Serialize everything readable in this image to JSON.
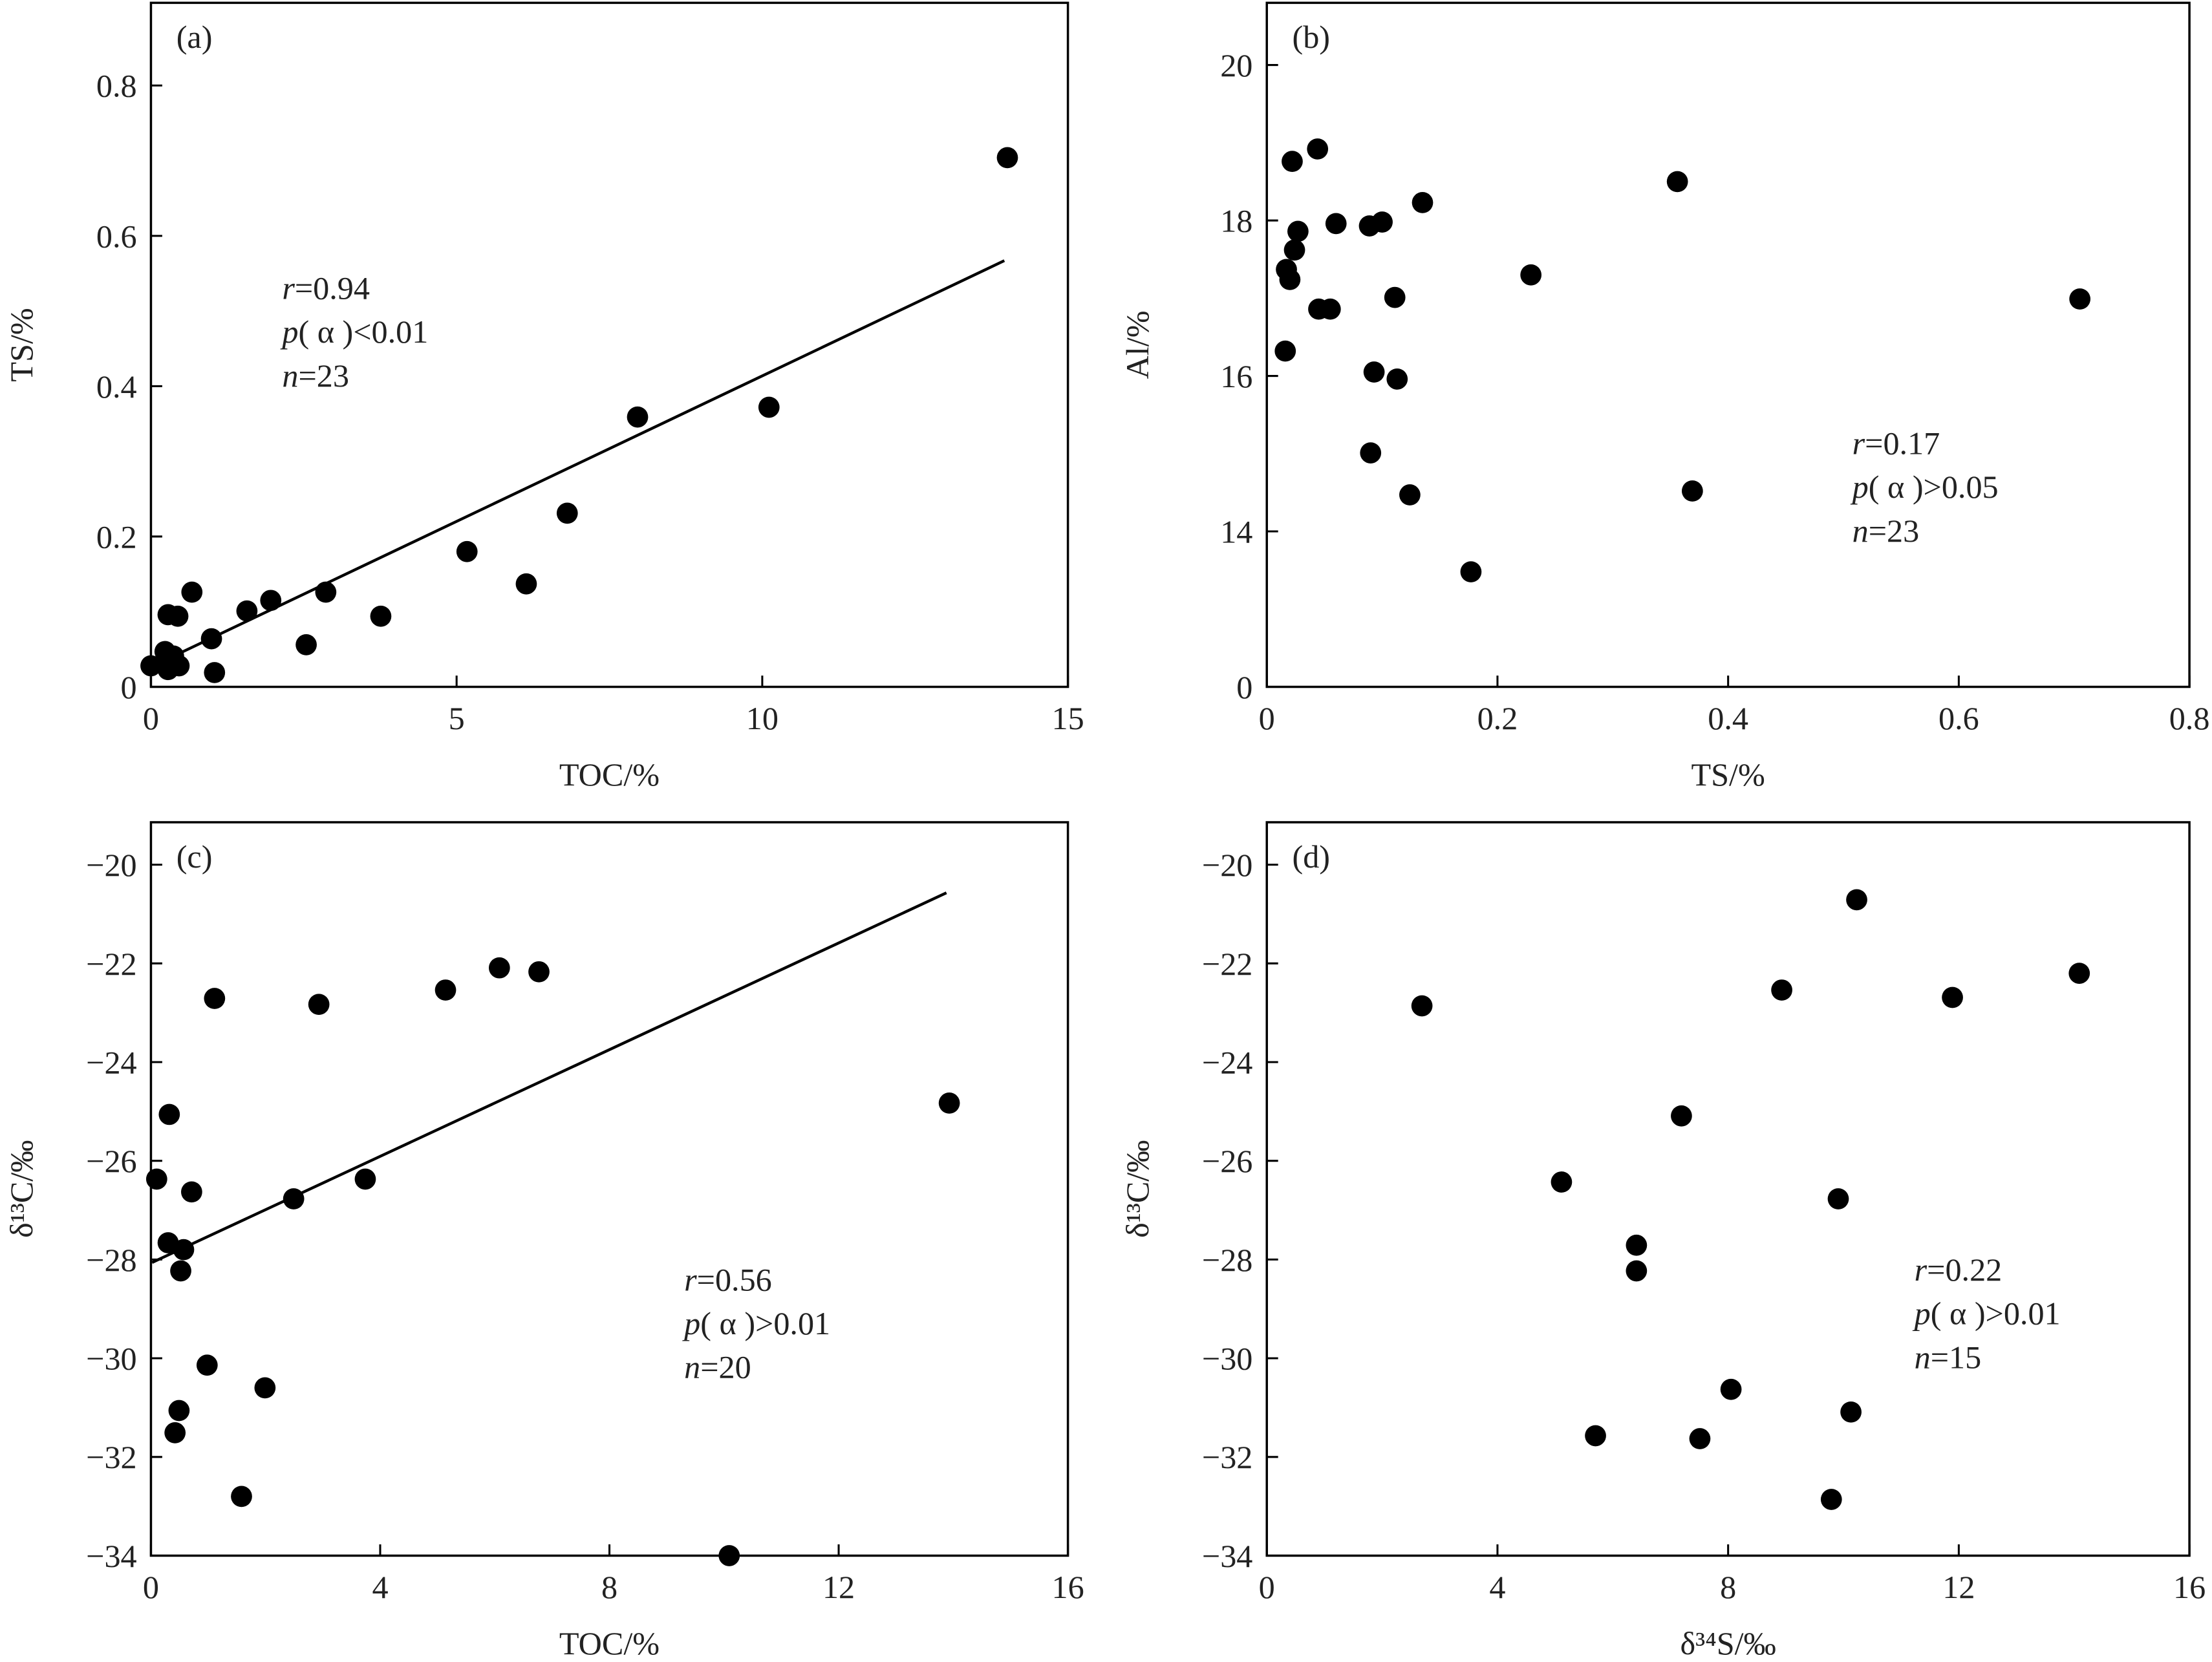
{
  "chart_data": [
    {
      "type": "scatter",
      "label": "(a)",
      "xlabel": "TOC/%",
      "ylabel": "TS/%",
      "color": "#000000",
      "x": [
        0,
        0.23,
        0.28,
        0.28,
        0.37,
        0.44,
        0.46,
        0.67,
        0.99,
        1.04,
        1.57,
        1.96,
        2.54,
        2.86,
        3.76,
        5.17,
        6.14,
        6.81,
        7.96,
        10.11,
        14.01,
        0.3,
        0.4
      ],
      "y": [
        0.028,
        0.047,
        0.096,
        0.023,
        0.041,
        0.094,
        0.028,
        0.126,
        0.064,
        0.019,
        0.101,
        0.115,
        0.056,
        0.126,
        0.094,
        0.18,
        0.137,
        0.231,
        0.359,
        0.372,
        0.704,
        0.035,
        0.032
      ],
      "xlim": [
        0,
        15
      ],
      "ylim": [
        0,
        0.91
      ],
      "xticks": [
        0,
        5,
        10,
        15
      ],
      "yticks": [
        0,
        {
          "value": 0.2,
          "label": "0.2"
        },
        {
          "value": 0.4,
          "label": "0.4"
        },
        {
          "value": 0.6,
          "label": "0.6"
        },
        {
          "value": 0.8,
          "label": "0.8"
        }
      ],
      "trendline": {
        "x": [
          0.14,
          13.96
        ],
        "y": [
          0.032,
          0.567
        ]
      },
      "annotations": [
        {
          "italic": "r",
          "text": "=0.94"
        },
        {
          "italic": "p",
          "text": "( α )<0.01"
        },
        {
          "italic": "n",
          "text": "=23"
        }
      ]
    },
    {
      "type": "scatter",
      "label": "(b)",
      "xlabel": "TS/%",
      "ylabel": "Al/%",
      "color": "#000000",
      "x": [
        0.022,
        0.044,
        0.356,
        0.135,
        0.027,
        0.06,
        0.089,
        0.1,
        0.024,
        0.017,
        0.02,
        0.229,
        0.045,
        0.055,
        0.111,
        0.705,
        0.016,
        0.093,
        0.113,
        0.09,
        0.124,
        0.369,
        0.177
      ],
      "y": [
        18.76,
        18.92,
        18.5,
        18.23,
        17.86,
        17.96,
        17.93,
        17.98,
        17.62,
        17.37,
        17.24,
        17.3,
        16.86,
        16.86,
        17.01,
        16.99,
        16.32,
        16.05,
        15.96,
        15.01,
        14.47,
        14.52,
        13.48
      ],
      "xlim": [
        0,
        0.8
      ],
      "ylim": [
        12,
        20.8
      ],
      "xticks": [
        0,
        {
          "value": 0.2,
          "label": "0.2"
        },
        {
          "value": 0.4,
          "label": "0.4"
        },
        {
          "value": 0.6,
          "label": "0.6"
        },
        {
          "value": 0.8,
          "label": "0.8"
        }
      ],
      "yticks": [
        {
          "value": 12,
          "label": "0"
        },
        14,
        16,
        18,
        20
      ],
      "annotations": [
        {
          "italic": "r",
          "text": "=0.17"
        },
        {
          "italic": "p",
          "text": "( α )>0.05"
        },
        {
          "italic": "n",
          "text": "=23"
        }
      ]
    },
    {
      "type": "scatter",
      "label": "(c)",
      "xlabel": "TOC/%",
      "ylabel": "δ¹³C/‰",
      "color": "#000000",
      "x": [
        0.1,
        0.32,
        0.3,
        0.57,
        0.52,
        0.71,
        1.11,
        0.98,
        0.49,
        0.42,
        1.99,
        1.58,
        2.49,
        2.93,
        3.74,
        5.14,
        6.08,
        6.77,
        10.09,
        13.93
      ],
      "y": [
        -26.37,
        -25.06,
        -27.66,
        -27.8,
        -28.23,
        -26.63,
        -22.71,
        -30.14,
        -31.06,
        -31.51,
        -30.6,
        -32.8,
        -26.77,
        -22.83,
        -26.37,
        -22.54,
        -22.09,
        -22.17,
        -34,
        -24.83
      ],
      "xlim": [
        0,
        16
      ],
      "ylim": [
        -34,
        -19.14
      ],
      "xticks": [
        0,
        4,
        8,
        12,
        16
      ],
      "yticks": [
        {
          "value": -34,
          "label": "−34"
        },
        {
          "value": -32,
          "label": "−32"
        },
        {
          "value": -30,
          "label": "−30"
        },
        {
          "value": -28,
          "label": "−28"
        },
        {
          "value": -26,
          "label": "−26"
        },
        {
          "value": -24,
          "label": "−24"
        },
        {
          "value": -22,
          "label": "−22"
        },
        {
          "value": -20,
          "label": "−20"
        }
      ],
      "trendline": {
        "x": [
          0.02,
          13.88
        ],
        "y": [
          -28.06,
          -20.57
        ]
      },
      "annotations": [
        {
          "italic": "r",
          "text": "=0.56"
        },
        {
          "italic": "p",
          "text": "( α )>0.01"
        },
        {
          "italic": "n",
          "text": "=20"
        }
      ]
    },
    {
      "type": "scatter",
      "label": "(d)",
      "xlabel": "δ³⁴S/‰",
      "ylabel": "δ¹³C/‰",
      "color": "#000000",
      "x": [
        2.69,
        5.11,
        6.41,
        6.41,
        5.7,
        7.19,
        7.51,
        8.05,
        8.93,
        10.23,
        9.91,
        10.13,
        9.79,
        11.89,
        14.09
      ],
      "y": [
        -22.86,
        -26.43,
        -27.71,
        -28.23,
        -31.57,
        -25.09,
        -31.63,
        -30.63,
        -22.54,
        -20.71,
        -26.77,
        -31.09,
        -32.86,
        -22.69,
        -22.2
      ],
      "xlim": [
        0,
        16
      ],
      "ylim": [
        -34,
        -19.14
      ],
      "xticks": [
        0,
        4,
        8,
        12,
        16
      ],
      "yticks": [
        {
          "value": -34,
          "label": "−34"
        },
        {
          "value": -32,
          "label": "−32"
        },
        {
          "value": -30,
          "label": "−30"
        },
        {
          "value": -28,
          "label": "−28"
        },
        {
          "value": -26,
          "label": "−26"
        },
        {
          "value": -24,
          "label": "−24"
        },
        {
          "value": -22,
          "label": "−22"
        },
        {
          "value": -20,
          "label": "−20"
        }
      ],
      "annotations": [
        {
          "italic": "r",
          "text": "=0.22"
        },
        {
          "italic": "p",
          "text": "( α )>0.01"
        },
        {
          "italic": "n",
          "text": "=15"
        }
      ]
    }
  ]
}
